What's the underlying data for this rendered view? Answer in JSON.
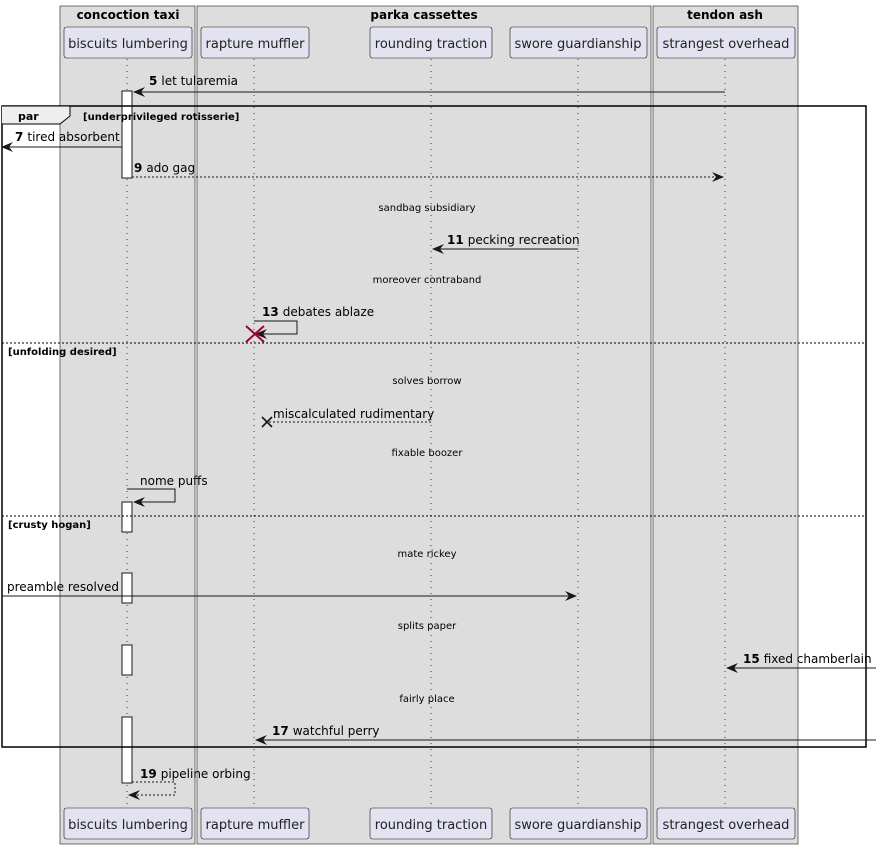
{
  "boxes": [
    {
      "title": "concoction taxi"
    },
    {
      "title": "parka cassettes"
    },
    {
      "title": "tendon ash"
    }
  ],
  "participants": [
    {
      "label": "biscuits lumbering"
    },
    {
      "label": "rapture muffler"
    },
    {
      "label": "rounding traction"
    },
    {
      "label": "swore guardianship"
    },
    {
      "label": "strangest overhead"
    }
  ],
  "messages": [
    {
      "num": "5",
      "label": "let tularemia"
    },
    {
      "num": "7",
      "label": "tired absorbent"
    },
    {
      "num": "9",
      "label": "ado gag"
    },
    {
      "num": "11",
      "label": "pecking recreation"
    },
    {
      "num": "13",
      "label": "debates ablaze"
    },
    {
      "num": "",
      "label": "miscalculated rudimentary"
    },
    {
      "num": "",
      "label": "nome puffs"
    },
    {
      "num": "",
      "label": "preamble resolved"
    },
    {
      "num": "15",
      "label": "fixed chamberlain"
    },
    {
      "num": "17",
      "label": "watchful perry"
    },
    {
      "num": "19",
      "label": "pipeline orbing"
    }
  ],
  "dividers": [
    {
      "label": "sandbag subsidiary"
    },
    {
      "label": "moreover contraband"
    },
    {
      "label": "solves borrow"
    },
    {
      "label": "fixable boozer"
    },
    {
      "label": "mate rickey"
    },
    {
      "label": "splits paper"
    },
    {
      "label": "fairly place"
    }
  ],
  "frame": {
    "keyword": "par",
    "conditions": [
      "[underprivileged rotisserie]",
      "[unfolding desired]",
      "[crusty hogan]"
    ]
  },
  "colors": {
    "box_fill": "#dddddd",
    "participant_fill": "#e2e2f0",
    "destroy_red": "#a80036"
  }
}
